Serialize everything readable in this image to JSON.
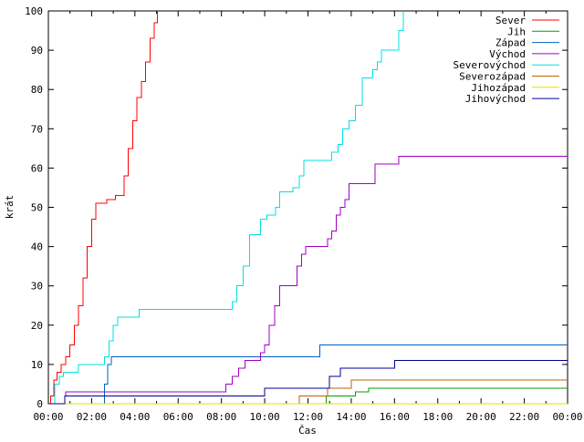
{
  "chart_data": {
    "type": "line",
    "title": "",
    "xlabel": "Čas",
    "ylabel": "krát",
    "xlim": [
      "00:00",
      "24:00"
    ],
    "ylim": [
      0,
      100
    ],
    "x_tick_labels": [
      "00:00",
      "02:00",
      "04:00",
      "06:00",
      "08:00",
      "10:00",
      "12:00",
      "14:00",
      "16:00",
      "18:00",
      "20:00",
      "22:00",
      "00:00"
    ],
    "y_tick_labels": [
      "0",
      "10",
      "20",
      "30",
      "40",
      "50",
      "60",
      "70",
      "80",
      "90",
      "100"
    ],
    "y_ticks": [
      0,
      10,
      20,
      30,
      40,
      50,
      60,
      70,
      80,
      90,
      100
    ],
    "grid": false,
    "legend_position": "top-right",
    "x_unit": "hours since 00:00",
    "series": [
      {
        "name": "Sever",
        "color": "#ff0000",
        "points": [
          [
            0.0,
            0
          ],
          [
            0.1,
            2
          ],
          [
            0.25,
            6
          ],
          [
            0.4,
            8
          ],
          [
            0.6,
            10
          ],
          [
            0.8,
            12
          ],
          [
            1.0,
            15
          ],
          [
            1.2,
            20
          ],
          [
            1.4,
            25
          ],
          [
            1.6,
            32
          ],
          [
            1.8,
            40
          ],
          [
            2.0,
            47
          ],
          [
            2.2,
            51
          ],
          [
            2.6,
            51
          ],
          [
            2.7,
            52
          ],
          [
            2.9,
            52
          ],
          [
            3.1,
            53
          ],
          [
            3.3,
            53
          ],
          [
            3.5,
            58
          ],
          [
            3.7,
            65
          ],
          [
            3.9,
            72
          ],
          [
            4.1,
            78
          ],
          [
            4.3,
            82
          ],
          [
            4.5,
            87
          ],
          [
            4.7,
            93
          ],
          [
            4.9,
            97
          ],
          [
            5.05,
            100
          ]
        ]
      },
      {
        "name": "Jih",
        "color": "#00a000",
        "points": [
          [
            0.0,
            0
          ],
          [
            12.8,
            0
          ],
          [
            12.85,
            2
          ],
          [
            14.1,
            2
          ],
          [
            14.2,
            3
          ],
          [
            14.7,
            3
          ],
          [
            14.8,
            4
          ],
          [
            24.0,
            4
          ]
        ]
      },
      {
        "name": "Západ",
        "color": "#0060c0",
        "points": [
          [
            0.0,
            0
          ],
          [
            2.5,
            0
          ],
          [
            2.6,
            5
          ],
          [
            2.75,
            10
          ],
          [
            2.9,
            12
          ],
          [
            12.5,
            12
          ],
          [
            12.55,
            15
          ],
          [
            24.0,
            15
          ]
        ]
      },
      {
        "name": "Východ",
        "color": "#a000c0",
        "points": [
          [
            0.0,
            0
          ],
          [
            0.7,
            0
          ],
          [
            0.75,
            2
          ],
          [
            0.8,
            3
          ],
          [
            8.0,
            3
          ],
          [
            8.2,
            5
          ],
          [
            8.5,
            7
          ],
          [
            8.8,
            9
          ],
          [
            9.1,
            11
          ],
          [
            9.6,
            11
          ],
          [
            9.8,
            13
          ],
          [
            10.0,
            15
          ],
          [
            10.2,
            20
          ],
          [
            10.45,
            25
          ],
          [
            10.7,
            30
          ],
          [
            11.4,
            30
          ],
          [
            11.5,
            35
          ],
          [
            11.7,
            38
          ],
          [
            11.9,
            40
          ],
          [
            12.7,
            40
          ],
          [
            12.9,
            42
          ],
          [
            13.1,
            44
          ],
          [
            13.3,
            48
          ],
          [
            13.5,
            50
          ],
          [
            13.7,
            52
          ],
          [
            13.9,
            56
          ],
          [
            14.9,
            56
          ],
          [
            15.1,
            61
          ],
          [
            16.0,
            61
          ],
          [
            16.2,
            63
          ],
          [
            24.0,
            63
          ]
        ]
      },
      {
        "name": "Severovýchod",
        "color": "#00e0e0",
        "points": [
          [
            0.0,
            0
          ],
          [
            0.2,
            0
          ],
          [
            0.3,
            5
          ],
          [
            0.5,
            7
          ],
          [
            0.7,
            8
          ],
          [
            1.2,
            8
          ],
          [
            1.4,
            10
          ],
          [
            2.4,
            10
          ],
          [
            2.6,
            12
          ],
          [
            2.8,
            16
          ],
          [
            3.0,
            20
          ],
          [
            3.2,
            22
          ],
          [
            4.0,
            22
          ],
          [
            4.2,
            24
          ],
          [
            8.3,
            24
          ],
          [
            8.5,
            26
          ],
          [
            8.7,
            30
          ],
          [
            9.0,
            35
          ],
          [
            9.3,
            43
          ],
          [
            9.6,
            43
          ],
          [
            9.8,
            47
          ],
          [
            10.1,
            48
          ],
          [
            10.5,
            50
          ],
          [
            10.7,
            54
          ],
          [
            11.3,
            55
          ],
          [
            11.6,
            58
          ],
          [
            11.8,
            62
          ],
          [
            12.9,
            62
          ],
          [
            13.1,
            64
          ],
          [
            13.4,
            66
          ],
          [
            13.6,
            70
          ],
          [
            13.9,
            72
          ],
          [
            14.2,
            76
          ],
          [
            14.5,
            83
          ],
          [
            15.0,
            85
          ],
          [
            15.2,
            87
          ],
          [
            15.4,
            90
          ],
          [
            16.0,
            90
          ],
          [
            16.2,
            95
          ],
          [
            16.4,
            100
          ]
        ]
      },
      {
        "name": "Severozápad",
        "color": "#c06000",
        "points": [
          [
            0.0,
            0
          ],
          [
            11.5,
            0
          ],
          [
            11.6,
            2
          ],
          [
            12.8,
            2
          ],
          [
            12.9,
            4
          ],
          [
            13.9,
            4
          ],
          [
            14.0,
            6
          ],
          [
            24.0,
            6
          ]
        ]
      },
      {
        "name": "Jihozápad",
        "color": "#e0e000",
        "points": [
          [
            0.0,
            0
          ],
          [
            24.0,
            0
          ]
        ]
      },
      {
        "name": "Jihovýchod",
        "color": "#000090",
        "points": [
          [
            0.0,
            0
          ],
          [
            0.7,
            0
          ],
          [
            0.75,
            2
          ],
          [
            9.9,
            2
          ],
          [
            10.0,
            4
          ],
          [
            12.9,
            4
          ],
          [
            13.0,
            7
          ],
          [
            13.4,
            7
          ],
          [
            13.5,
            9
          ],
          [
            15.9,
            9
          ],
          [
            16.0,
            11
          ],
          [
            24.0,
            11
          ]
        ]
      }
    ]
  }
}
